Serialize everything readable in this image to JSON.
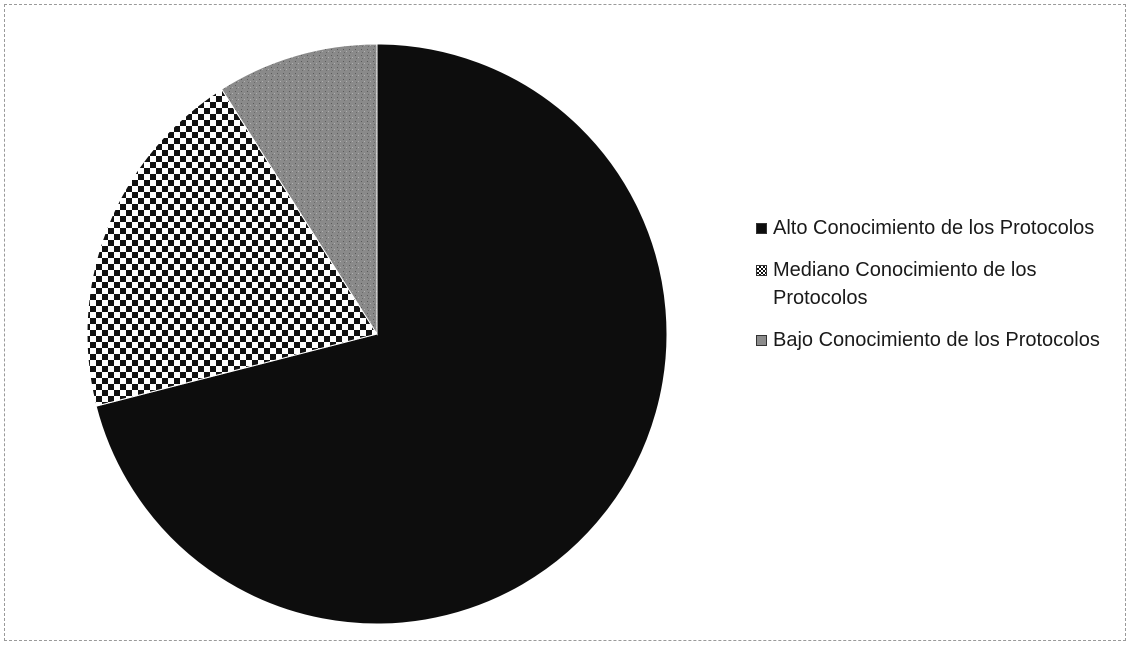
{
  "chart_data": {
    "type": "pie",
    "title": "",
    "categories": [
      "Alto Conocimiento de los Protocolos",
      "Mediano Conocimiento de los Protocolos",
      "Bajo Conocimiento de los Protocolos"
    ],
    "values": [
      71,
      20,
      9
    ],
    "colors": [
      "#0d0d0d",
      "checkered",
      "#8c8c8c"
    ],
    "legend_position": "right",
    "grid": false
  },
  "legend": {
    "items": [
      {
        "label": "Alto Conocimiento de los Protocolos",
        "icon": "black-square"
      },
      {
        "label": "Mediano Conocimiento de los Protocolos",
        "icon": "checkered-square"
      },
      {
        "label": "Bajo Conocimiento de los Protocolos",
        "icon": "gray-square"
      }
    ]
  }
}
